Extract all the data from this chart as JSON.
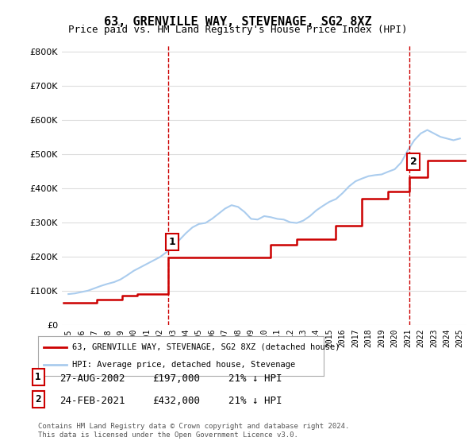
{
  "title": "63, GRENVILLE WAY, STEVENAGE, SG2 8XZ",
  "subtitle": "Price paid vs. HM Land Registry's House Price Index (HPI)",
  "ylabel": "",
  "background_color": "#ffffff",
  "plot_bg_color": "#ffffff",
  "grid_color": "#dddddd",
  "hpi_color": "#aaccee",
  "price_color": "#cc0000",
  "marker1_x": 2002.65,
  "marker1_y": 197000,
  "marker2_x": 2021.12,
  "marker2_y": 432000,
  "legend_label1": "63, GRENVILLE WAY, STEVENAGE, SG2 8XZ (detached house)",
  "legend_label2": "HPI: Average price, detached house, Stevenage",
  "table_rows": [
    {
      "num": "1",
      "date": "27-AUG-2002",
      "price": "£197,000",
      "pct": "21% ↓ HPI"
    },
    {
      "num": "2",
      "date": "24-FEB-2021",
      "price": "£432,000",
      "pct": "21% ↓ HPI"
    }
  ],
  "footnote": "Contains HM Land Registry data © Crown copyright and database right 2024.\nThis data is licensed under the Open Government Licence v3.0.",
  "ylim": [
    0,
    820000
  ],
  "xlim": [
    1994.5,
    2025.5
  ]
}
